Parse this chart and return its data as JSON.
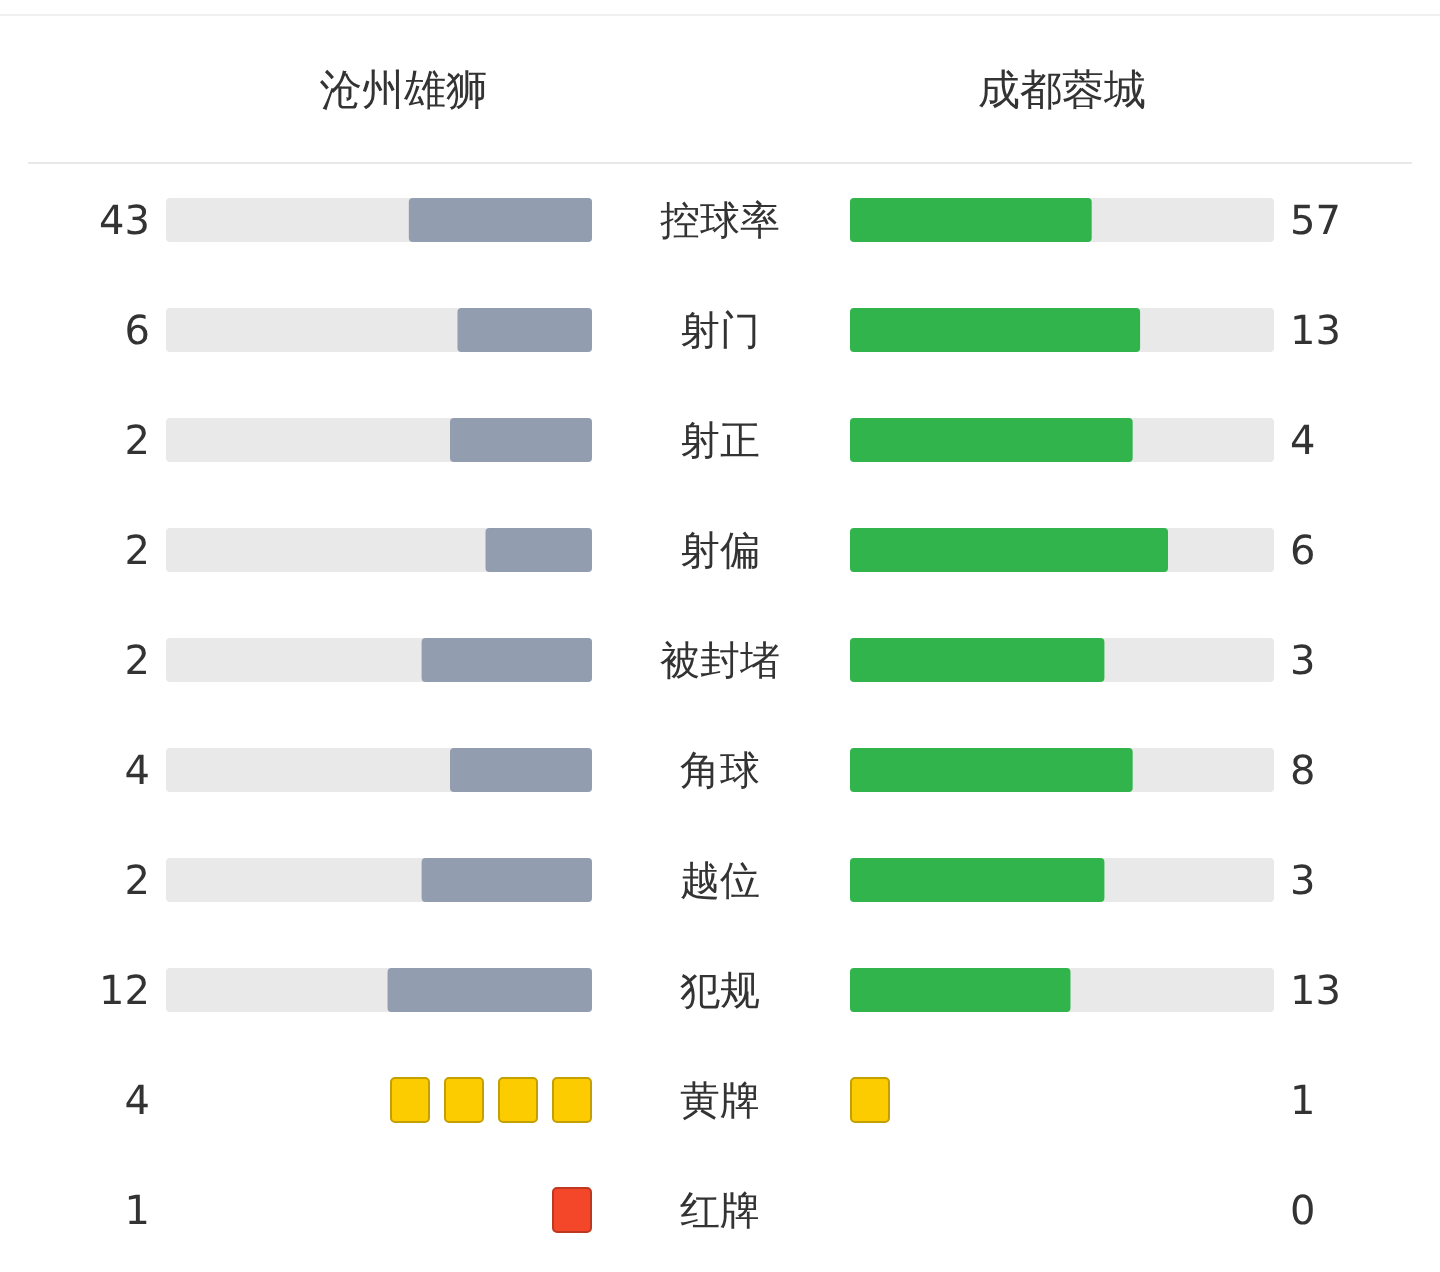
{
  "chart_data": [
    {
      "type": "other",
      "categories": [
        "控球率",
        "射门",
        "射正",
        "射偏",
        "被封堵",
        "角球",
        "越位",
        "犯规"
      ],
      "data_labels": true,
      "series": [
        {
          "name": "沧州雄狮",
          "colors": [
            "#939db0",
            "#939db0",
            "#939db0",
            "#939db0",
            "#939db0",
            "#939db0",
            "#939db0",
            "#939db0"
          ],
          "values": [
            43,
            6,
            2,
            2,
            2,
            4,
            2,
            12
          ]
        },
        {
          "name": "成都蓉城",
          "colors": [
            "#31b44b",
            "#31b44b",
            "#31b44b",
            "#31b44b",
            "#31b44b",
            "#31b44b",
            "#31b44b",
            "#31b44b"
          ],
          "values": [
            57,
            13,
            4,
            6,
            3,
            8,
            3,
            13
          ]
        }
      ]
    },
    {
      "type": "other",
      "categories": [
        "黄牌",
        "红牌"
      ],
      "data_labels": true,
      "series": [
        {
          "colors": [
            "#fccc00",
            "#f4472a"
          ],
          "values": [
            4,
            1
          ]
        },
        {
          "colors": [
            "#fccc00",
            "#f4472a"
          ],
          "values": [
            1,
            0
          ]
        }
      ]
    }
  ]
}
